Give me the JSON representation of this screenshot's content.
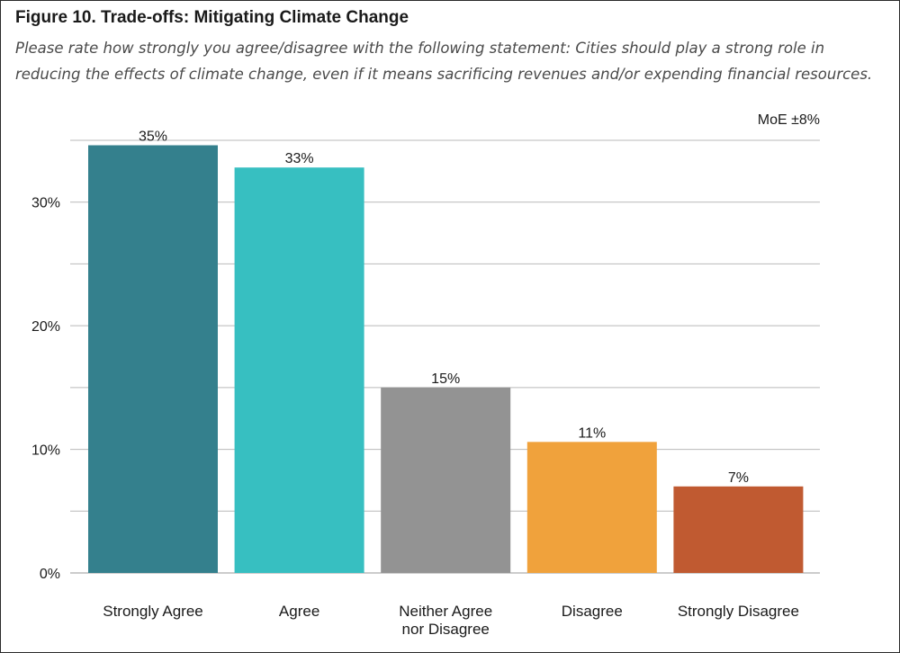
{
  "figure": {
    "title": "Figure 10. Trade-offs: Mitigating Climate Change",
    "subtitle": "Please rate how strongly you agree/disagree with the following statement: Cities should play a strong role in reducing the effects of climate change, even if it means sacrificing revenues and/or expending financial resources."
  },
  "chart_data": {
    "type": "bar",
    "title": "Figure 10. Trade-offs: Mitigating Climate Change",
    "subtitle": "Please rate how strongly you agree/disagree with the following statement: Cities should play a strong role in reducing the effects of climate change, even if it means sacrificing revenues and/or expending financial resources.",
    "annotation": "MoE ±8%",
    "categories": [
      [
        "Strongly Agree"
      ],
      [
        "Agree"
      ],
      [
        "Neither Agree",
        "nor Disagree"
      ],
      [
        "Disagree"
      ],
      [
        "Strongly Disagree"
      ]
    ],
    "values": [
      34.6,
      32.8,
      15.0,
      10.6,
      7.0
    ],
    "value_labels": [
      "35%",
      "33%",
      "15%",
      "11%",
      "7%"
    ],
    "colors": [
      "#34808d",
      "#37bfc1",
      "#939393",
      "#f0a23c",
      "#c05a31"
    ],
    "ylim": [
      0,
      35
    ],
    "yticks": [
      0,
      10,
      20,
      30
    ],
    "ytick_labels": [
      "0%",
      "10%",
      "20%",
      "30%"
    ],
    "gridlines": [
      0,
      5,
      10,
      15,
      20,
      25,
      30,
      35
    ],
    "grid": true,
    "xlabel": "",
    "ylabel": ""
  }
}
